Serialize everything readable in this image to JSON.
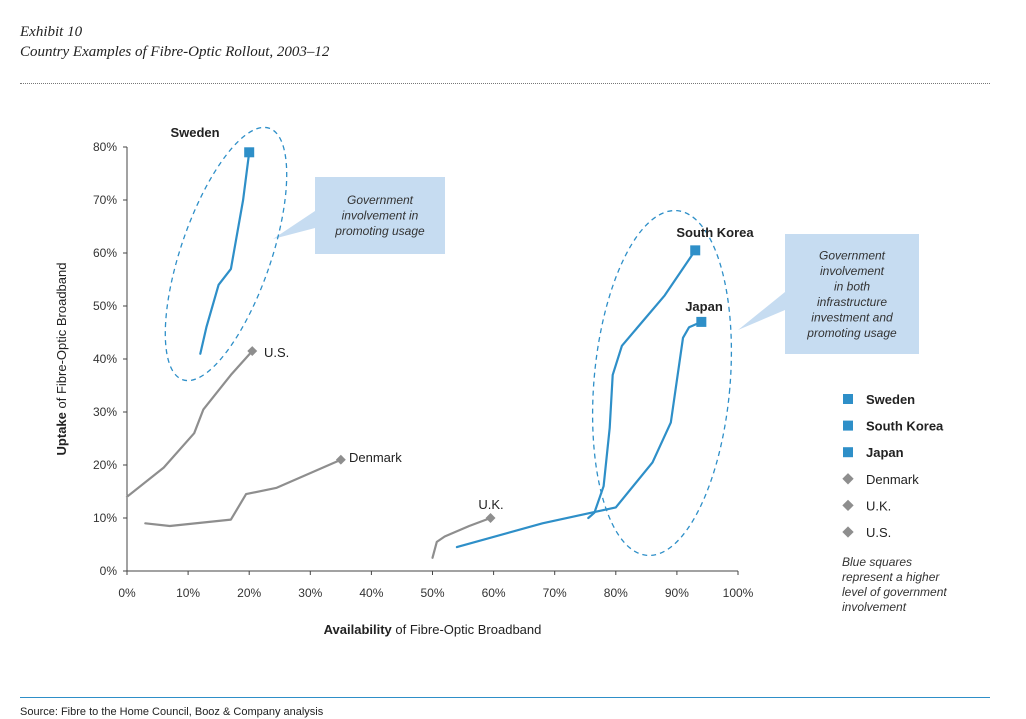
{
  "header": {
    "exhibit": "Exhibit 10",
    "title": "Country Examples of Fibre-Optic Rollout, 2003–12"
  },
  "footer": {
    "source": "Source:  Fibre to the Home Council, Booz & Company analysis"
  },
  "chart_data": {
    "type": "line",
    "xlabel": {
      "bold": "Availability",
      "rest": " of Fibre-Optic Broadband"
    },
    "ylabel": {
      "bold": "Uptake",
      "rest": " of Fibre-Optic Broadband"
    },
    "xlim": [
      0,
      100
    ],
    "ylim": [
      0,
      80
    ],
    "x_ticks": [
      "0%",
      "10%",
      "20%",
      "30%",
      "40%",
      "50%",
      "60%",
      "70%",
      "80%",
      "90%",
      "100%"
    ],
    "y_ticks": [
      "0%",
      "10%",
      "20%",
      "30%",
      "40%",
      "50%",
      "60%",
      "70%",
      "80%"
    ],
    "grid": false,
    "colors": {
      "blue": "#2e8fc8",
      "gray": "#8e8e8e",
      "callout": "#c6dcf1"
    },
    "series": [
      {
        "name": "Sweden",
        "color": "#2e8fc8",
        "marker": "square",
        "label_bold": true,
        "points": [
          [
            12,
            41
          ],
          [
            13,
            46
          ],
          [
            15,
            54
          ],
          [
            17,
            57
          ],
          [
            19,
            70
          ],
          [
            20,
            79
          ]
        ]
      },
      {
        "name": "South Korea",
        "color": "#2e8fc8",
        "marker": "square",
        "label_bold": true,
        "points": [
          [
            75.5,
            10
          ],
          [
            76.5,
            11
          ],
          [
            78,
            16
          ],
          [
            79,
            27
          ],
          [
            79.5,
            37
          ],
          [
            81,
            42.5
          ],
          [
            88,
            52
          ],
          [
            93,
            60.5
          ]
        ]
      },
      {
        "name": "Japan",
        "color": "#2e8fc8",
        "marker": "square",
        "label_bold": true,
        "points": [
          [
            54,
            4.5
          ],
          [
            68,
            9
          ],
          [
            76,
            11
          ],
          [
            80,
            12
          ],
          [
            86,
            20.5
          ],
          [
            89,
            28
          ],
          [
            91,
            44
          ],
          [
            92,
            46
          ],
          [
            94,
            47
          ]
        ]
      },
      {
        "name": "Denmark",
        "color": "#8e8e8e",
        "marker": "diamond",
        "label_bold": false,
        "points": [
          [
            3,
            9
          ],
          [
            7,
            8.5
          ],
          [
            17,
            9.7
          ],
          [
            19.5,
            14.5
          ],
          [
            24.5,
            15.7
          ],
          [
            35,
            21
          ]
        ]
      },
      {
        "name": "U.K.",
        "color": "#8e8e8e",
        "marker": "diamond",
        "label_bold": false,
        "points": [
          [
            50,
            2.5
          ],
          [
            50.7,
            5.5
          ],
          [
            52,
            6.5
          ],
          [
            53,
            7
          ],
          [
            56,
            8.5
          ],
          [
            59.5,
            10
          ]
        ]
      },
      {
        "name": "U.S.",
        "color": "#8e8e8e",
        "marker": "diamond",
        "label_bold": false,
        "points": [
          [
            0,
            14
          ],
          [
            6,
            19.5
          ],
          [
            11,
            26
          ],
          [
            12.5,
            30.5
          ],
          [
            17,
            37
          ],
          [
            20.5,
            41.5
          ]
        ]
      }
    ],
    "annotations": [
      {
        "text": [
          "Government",
          "involvement in",
          "promoting usage"
        ]
      },
      {
        "text": [
          "Government",
          "involvement",
          "in both",
          "infrastructure",
          "investment and",
          "promoting usage"
        ]
      }
    ],
    "legend": {
      "position": "right",
      "items": [
        "Sweden",
        "South Korea",
        "Japan",
        "Denmark",
        "U.K.",
        "U.S."
      ],
      "note": [
        "Blue squares",
        "represent a higher",
        "level of government",
        "involvement"
      ]
    }
  }
}
